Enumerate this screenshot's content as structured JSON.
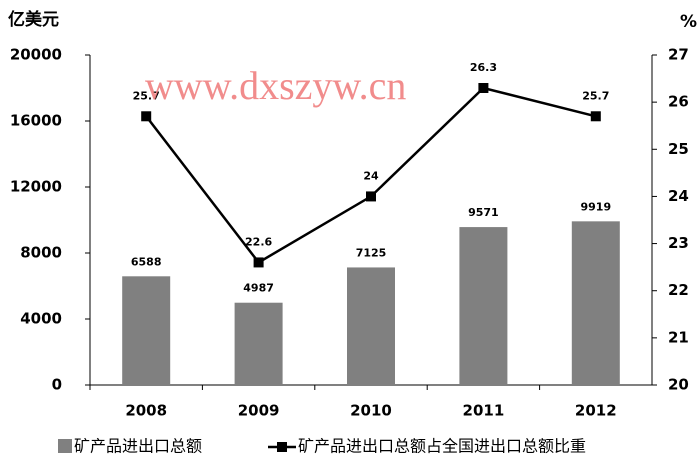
{
  "chart_data": {
    "type": "bar",
    "y_unit": "亿美元",
    "y2_unit": "%",
    "watermark": "www.dxszyw.cn",
    "categories": [
      "2008",
      "2009",
      "2010",
      "2011",
      "2012"
    ],
    "series": [
      {
        "name": "矿产品进出口总额",
        "type": "bar",
        "color": "#808080",
        "values": [
          6588,
          4987,
          7125,
          9571,
          9919
        ]
      },
      {
        "name": "矿产品进出口总额占全国进出口总额比重",
        "type": "line",
        "axis": "y2",
        "color": "#000000",
        "values": [
          25.7,
          22.6,
          24,
          26.3,
          25.7
        ]
      }
    ],
    "ylim": [
      0,
      20000
    ],
    "yticks": [
      0,
      4000,
      8000,
      12000,
      16000,
      20000
    ],
    "y2lim": [
      20,
      27
    ],
    "y2ticks": [
      20,
      21,
      22,
      23,
      24,
      25,
      26,
      27
    ],
    "grid": false
  }
}
